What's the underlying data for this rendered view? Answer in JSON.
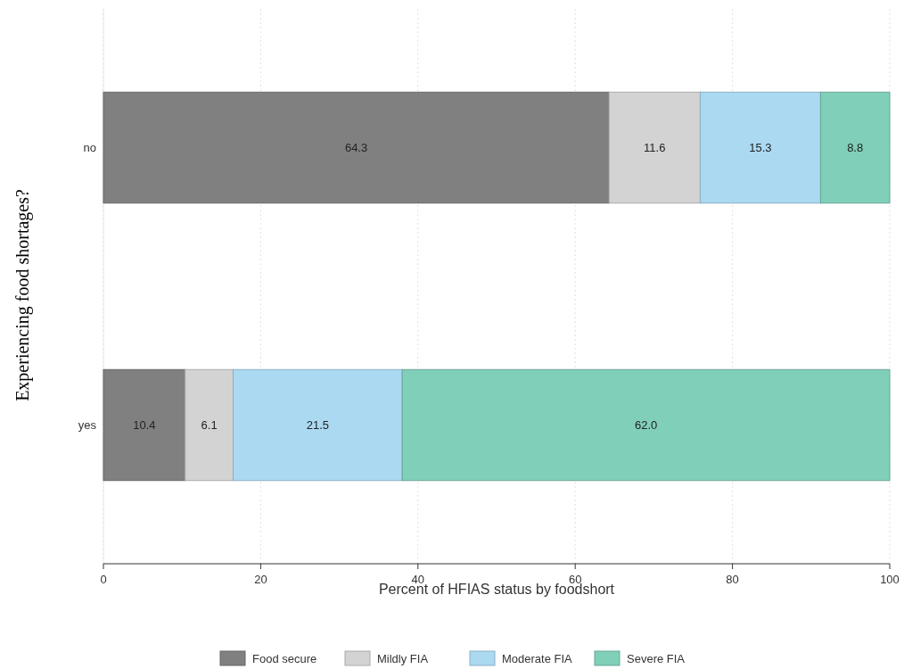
{
  "chart_data": {
    "type": "bar",
    "orientation": "horizontal",
    "stacked": true,
    "xlabel": "Percent of HFIAS status by foodshort",
    "ylabel": "Experiencing food shortages?",
    "categories": [
      "no",
      "yes"
    ],
    "series": [
      {
        "name": "Food secure",
        "color": "#808080",
        "values": [
          64.3,
          10.4
        ],
        "value_labels": [
          "64.3",
          "10.4"
        ]
      },
      {
        "name": "Mildly FIA",
        "color": "#d3d3d3",
        "values": [
          11.6,
          6.1
        ],
        "value_labels": [
          "11.6",
          "6.1"
        ]
      },
      {
        "name": "Moderate FIA",
        "color": "#abd9f2",
        "values": [
          15.3,
          21.5
        ],
        "value_labels": [
          "15.3",
          "21.5"
        ]
      },
      {
        "name": "Severe FIA",
        "color": "#80cfb9",
        "values": [
          8.8,
          62.0
        ],
        "value_labels": [
          "8.8",
          "62.0"
        ]
      }
    ],
    "xlim": [
      0,
      100
    ],
    "xticks": [
      0,
      20,
      40,
      60,
      80,
      100
    ],
    "grid": "x",
    "legend": "bottom"
  }
}
